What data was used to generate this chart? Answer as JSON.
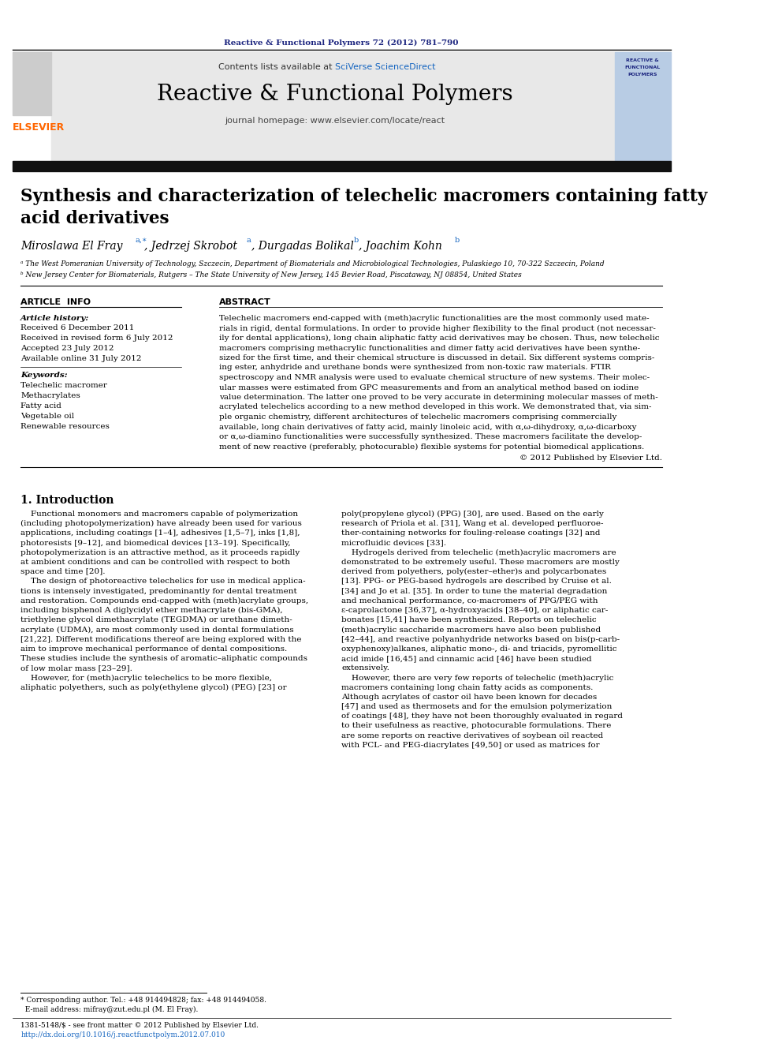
{
  "page_bg": "#ffffff",
  "journal_ref_color": "#1a237e",
  "journal_ref_text": "Reactive & Functional Polymers 72 (2012) 781–790",
  "header_bg": "#e8e8e8",
  "header_title": "Reactive & Functional Polymers",
  "header_link_color": "#1565c0",
  "header_homepage": "journal homepage: www.elsevier.com/locate/react",
  "elsevier_color": "#ff6600",
  "article_info_title": "ARTICLE  INFO",
  "abstract_title": "ABSTRACT",
  "article_history_label": "Article history:",
  "article_history": [
    "Received 6 December 2011",
    "Received in revised form 6 July 2012",
    "Accepted 23 July 2012",
    "Available online 31 July 2012"
  ],
  "keywords_label": "Keywords:",
  "keywords": [
    "Telechelic macromer",
    "Methacrylates",
    "Fatty acid",
    "Vegetable oil",
    "Renewable resources"
  ],
  "affil_a": "ᵃ The West Pomeranian University of Technology, Szczecin, Department of Biomaterials and Microbiological Technologies, Pulaskiego 10, 70-322 Szczecin, Poland",
  "affil_b": "ᵇ New Jersey Center for Biomaterials, Rutgers – The State University of New Jersey, 145 Bevier Road, Piscataway, NJ 08854, United States",
  "copyright_text": "© 2012 Published by Elsevier Ltd.",
  "intro_title": "1. Introduction",
  "footer_text1": "1381-5148/$ - see front matter © 2012 Published by Elsevier Ltd.",
  "footer_text2": "http://dx.doi.org/10.1016/j.reactfunctpolym.2012.07.010",
  "footnote1": "* Corresponding author. Tel.: +48 914494828; fax: +48 914494058.",
  "footnote2": "  E-mail address: mifray@zut.edu.pl (M. El Fray)."
}
